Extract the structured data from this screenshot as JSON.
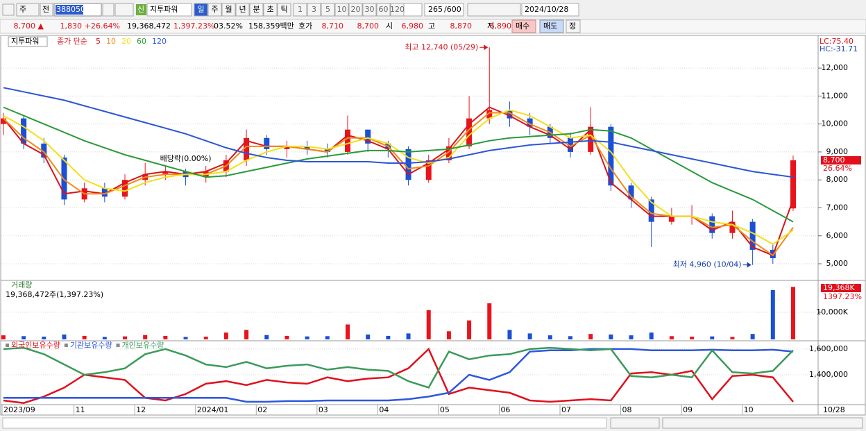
{
  "toolbar": {
    "mode": "주",
    "prev": "전",
    "code": "388050",
    "badge": "신",
    "name": "지투파워",
    "periods": [
      "일",
      "주",
      "월",
      "년",
      "분",
      "초",
      "틱"
    ],
    "intervals": [
      "1",
      "3",
      "5",
      "10",
      "20",
      "30",
      "60",
      "120"
    ],
    "count": "265",
    "count_max": "/600",
    "date": "2024/10/28"
  },
  "quote": {
    "price": "8,700 ▲",
    "change": "1,830",
    "change_pct": "+26.64%",
    "volume": "19,368,472",
    "volume_pct": "1,397.23%",
    "turnover": "03.52%",
    "amount": "158,359백만",
    "ask_label": "호가",
    "ask": "8,710",
    "bid": "8,700",
    "open_label": "시",
    "open": "6,980",
    "high_label": "고",
    "high": "8,870",
    "low_label": "저",
    "low": "6,890",
    "buy": "매수",
    "sell": "매도",
    "correct": "정"
  },
  "chart_data": [
    {
      "type": "candlestick",
      "title": "지투파워",
      "legend_prefix": "종가 단순",
      "corner_labels": [
        "LC:75.40",
        "HC:-31.71"
      ],
      "last_label": "8,700",
      "last_change": "26.64%",
      "up_color": "#e8141c",
      "down_color": "#1a4fd6",
      "open": [
        10000,
        10200,
        9300,
        8800,
        7300,
        7700,
        7400,
        8000,
        8200,
        8300,
        8100,
        8300,
        8700,
        9500,
        9100,
        9200,
        9100,
        9000,
        9800,
        9300,
        9100,
        8000,
        8700,
        9200,
        10200,
        10500,
        10200,
        9900,
        9500,
        9000,
        9900,
        7800,
        7300,
        6500,
        6700,
        6700,
        6100,
        6500,
        5500,
        6980
      ],
      "high": [
        10400,
        10300,
        9500,
        8900,
        7900,
        7900,
        8200,
        8600,
        8500,
        8400,
        8500,
        8900,
        9800,
        9600,
        9400,
        9400,
        9300,
        10300,
        9800,
        9400,
        9200,
        8900,
        9500,
        11000,
        12740,
        10800,
        10400,
        10000,
        9700,
        10600,
        10000,
        7900,
        7400,
        7000,
        7100,
        6800,
        6900,
        6600,
        5700,
        8870
      ],
      "low": [
        9600,
        9100,
        8600,
        7100,
        7200,
        7200,
        7300,
        7800,
        8000,
        7800,
        7900,
        8100,
        8500,
        8900,
        8800,
        8900,
        8800,
        8900,
        9000,
        8800,
        7800,
        7900,
        8600,
        9100,
        10000,
        9900,
        9600,
        9300,
        8800,
        8900,
        7600,
        7000,
        5600,
        6400,
        6400,
        5900,
        5900,
        4960,
        5000,
        6890
      ],
      "close": [
        10200,
        9300,
        8800,
        7300,
        7700,
        7400,
        8000,
        8200,
        8300,
        8100,
        8300,
        8700,
        9500,
        9100,
        9200,
        9100,
        9000,
        9800,
        9300,
        9100,
        8000,
        8700,
        9200,
        10200,
        10500,
        10200,
        9900,
        9500,
        9000,
        9900,
        7800,
        7300,
        6500,
        6700,
        6700,
        6100,
        6500,
        5500,
        5200,
        8700
      ],
      "series": [
        {
          "name": "5",
          "color": "#d9141b",
          "values": [
            10200,
            9300,
            8900,
            7500,
            7600,
            7500,
            7900,
            8200,
            8300,
            8200,
            8300,
            8600,
            9400,
            9200,
            9200,
            9100,
            9000,
            9600,
            9400,
            9100,
            8200,
            8600,
            9100,
            10000,
            10600,
            10300,
            9900,
            9600,
            9100,
            9800,
            7900,
            7300,
            6700,
            6700,
            6700,
            6200,
            6500,
            5600,
            5300,
            7300
          ]
        },
        {
          "name": "10",
          "color": "#f08a1c",
          "values": [
            10200,
            9500,
            9000,
            8000,
            7500,
            7500,
            7800,
            8100,
            8200,
            8200,
            8200,
            8500,
            9200,
            9200,
            9200,
            9100,
            9000,
            9500,
            9500,
            9200,
            8400,
            8500,
            9000,
            9800,
            10400,
            10400,
            10000,
            9700,
            9200,
            9600,
            8400,
            7400,
            6800,
            6700,
            6700,
            6300,
            6400,
            5800,
            5300,
            6300
          ]
        },
        {
          "name": "20",
          "color": "#f2e01a",
          "values": [
            10300,
            9900,
            9400,
            8700,
            8000,
            7700,
            7600,
            7900,
            8100,
            8200,
            8200,
            8300,
            8700,
            9000,
            9200,
            9200,
            9100,
            9300,
            9500,
            9300,
            8800,
            8600,
            8800,
            9600,
            10200,
            10500,
            10300,
            9900,
            9500,
            9600,
            9000,
            8000,
            7200,
            6700,
            6700,
            6500,
            6400,
            6100,
            5700,
            6200
          ]
        },
        {
          "name": "60",
          "color": "#2a9a3a",
          "values": [
            10600,
            10300,
            10000,
            9700,
            9400,
            9150,
            8900,
            8700,
            8500,
            8300,
            8100,
            8150,
            8300,
            8450,
            8600,
            8750,
            8850,
            8950,
            9050,
            9050,
            9000,
            9050,
            9100,
            9250,
            9400,
            9500,
            9550,
            9600,
            9650,
            9800,
            9750,
            9500,
            9100,
            8700,
            8300,
            7900,
            7600,
            7300,
            6900,
            6500
          ]
        },
        {
          "name": "120",
          "color": "#2b55d9",
          "values": [
            11300,
            11150,
            11000,
            10850,
            10650,
            10450,
            10250,
            10050,
            9850,
            9650,
            9400,
            9150,
            8950,
            8800,
            8700,
            8650,
            8650,
            8650,
            8650,
            8600,
            8600,
            8650,
            8750,
            8900,
            9050,
            9150,
            9250,
            9300,
            9350,
            9400,
            9350,
            9200,
            9050,
            8900,
            8750,
            8600,
            8450,
            8300,
            8200,
            8100
          ]
        }
      ],
      "annotations": [
        {
          "text": "최고 12,740 (05/29)",
          "index": 24,
          "anchor": "high",
          "color": "#d9141b",
          "arrow": true
        },
        {
          "text": "최저 4,960 (10/04)",
          "index": 37,
          "anchor": "low",
          "color": "#1a3fb0",
          "arrow": true
        },
        {
          "text": "배당락(0.00%)",
          "index": 9,
          "anchor": "high",
          "color": "#000000",
          "arrow": false
        }
      ],
      "ylim": [
        4430,
        13070
      ],
      "yticks": [
        {
          "value": 5000,
          "label": "5,000"
        },
        {
          "value": 6000,
          "label": "6,000"
        },
        {
          "value": 7000,
          "label": "7,000"
        },
        {
          "value": 8000,
          "label": "8,000"
        },
        {
          "value": 9000,
          "label": "9,000"
        },
        {
          "value": 10000,
          "label": "10,000"
        },
        {
          "value": 11000,
          "label": "11,000"
        },
        {
          "value": 12000,
          "label": "12,000"
        }
      ],
      "grid": true
    },
    {
      "type": "bar",
      "title": "거래량",
      "subtitle": "19,368,472주(1,397.23%)",
      "last_label": "19,368K",
      "last_change": "1397.23%",
      "values": [
        1500,
        1200,
        1000,
        1800,
        1300,
        900,
        1100,
        1600,
        1300,
        900,
        1000,
        2500,
        3500,
        1600,
        1300,
        1100,
        1200,
        5500,
        1800,
        1300,
        2200,
        10800,
        3000,
        7000,
        13300,
        3500,
        2200,
        1500,
        1200,
        2000,
        1800,
        1500,
        2500,
        1200,
        1000,
        1100,
        900,
        2000,
        18200,
        19368
      ],
      "ylim": [
        0,
        21500
      ],
      "yticks": [
        {
          "value": 10000,
          "label": "10,000K"
        }
      ],
      "grid": true
    },
    {
      "type": "line",
      "x_end_label": "10/28",
      "categories": [
        "2023/09",
        null,
        null,
        null,
        "11",
        null,
        null,
        "12",
        null,
        null,
        "2024/01",
        null,
        null,
        "02",
        null,
        null,
        "03",
        null,
        null,
        "04",
        null,
        null,
        "05",
        null,
        null,
        "06",
        null,
        null,
        "07",
        null,
        null,
        "08",
        null,
        null,
        "09",
        null,
        null,
        "10",
        null,
        null
      ],
      "series": [
        {
          "name": "외국인보유수량",
          "color": "#e0101c",
          "values": [
            1200000,
            1180000,
            1230000,
            1300000,
            1400000,
            1380000,
            1360000,
            1220000,
            1200000,
            1250000,
            1330000,
            1350000,
            1320000,
            1360000,
            1340000,
            1330000,
            1380000,
            1350000,
            1370000,
            1380000,
            1450000,
            1600000,
            1250000,
            1300000,
            1280000,
            1260000,
            1200000,
            1190000,
            1200000,
            1210000,
            1200000,
            1410000,
            1420000,
            1400000,
            1430000,
            1210000,
            1390000,
            1400000,
            1380000,
            1190000
          ]
        },
        {
          "name": "기관보유수량",
          "color": "#2d57e0",
          "values": [
            1220000,
            1220000,
            1220000,
            1220000,
            1220000,
            1220000,
            1220000,
            1220000,
            1220000,
            1220000,
            1220000,
            1220000,
            1190000,
            1190000,
            1195000,
            1195000,
            1200000,
            1200000,
            1200000,
            1200000,
            1210000,
            1230000,
            1260000,
            1400000,
            1360000,
            1420000,
            1580000,
            1590000,
            1590000,
            1600000,
            1600000,
            1600000,
            1590000,
            1590000,
            1590000,
            1595000,
            1590000,
            1590000,
            1595000,
            1580000
          ]
        },
        {
          "name": "개인보유수량",
          "color": "#3a9a5a",
          "values": [
            1600000,
            1610000,
            1560000,
            1480000,
            1400000,
            1420000,
            1450000,
            1560000,
            1600000,
            1550000,
            1480000,
            1460000,
            1500000,
            1450000,
            1470000,
            1480000,
            1440000,
            1460000,
            1440000,
            1430000,
            1350000,
            1300000,
            1580000,
            1520000,
            1550000,
            1560000,
            1600000,
            1610000,
            1600000,
            1590000,
            1600000,
            1390000,
            1380000,
            1400000,
            1380000,
            1590000,
            1420000,
            1410000,
            1430000,
            1590000
          ]
        }
      ],
      "ylim": [
        1173000,
        1659000
      ],
      "yticks": [
        {
          "value": 1400000,
          "label": "1,400,000"
        },
        {
          "value": 1600000,
          "label": "1,600,000"
        }
      ],
      "grid": true
    }
  ]
}
